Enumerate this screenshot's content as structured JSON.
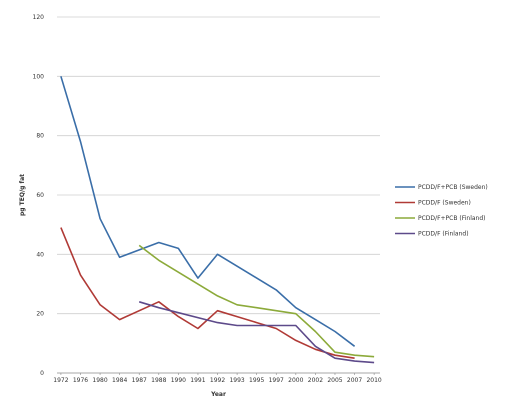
{
  "chart_data": {
    "type": "line",
    "title": "",
    "xlabel": "Year",
    "ylabel": "pg TEQ/g fat",
    "ylim": [
      0,
      120
    ],
    "yticks": [
      0,
      20,
      40,
      60,
      80,
      100,
      120
    ],
    "categories": [
      "1972",
      "1976",
      "1980",
      "1984",
      "1987",
      "1988",
      "1990",
      "1991",
      "1992",
      "1993",
      "1995",
      "1997",
      "2000",
      "2002",
      "2005",
      "2007",
      "2010"
    ],
    "grid": true,
    "legend_position": "right",
    "series": [
      {
        "name": "PCDD/F+PCB (Sweden)",
        "color": "#3a6ea8",
        "values": [
          100,
          78,
          52,
          39,
          null,
          44,
          42,
          32,
          40,
          36,
          32,
          28,
          22,
          18,
          14,
          9,
          null
        ]
      },
      {
        "name": "PCDD/F (Sweden)",
        "color": "#b03a36",
        "values": [
          49,
          33,
          23,
          18,
          null,
          24,
          19,
          15,
          21,
          19,
          17,
          15,
          11,
          8,
          6,
          5,
          null
        ]
      },
      {
        "name": "PCDD/F+PCB (Finland)",
        "color": "#8caa3a",
        "values": [
          null,
          null,
          null,
          null,
          43,
          38,
          null,
          null,
          26,
          23,
          22,
          21,
          20,
          14,
          7,
          6,
          5.5
        ]
      },
      {
        "name": "PCDD/F (Finland)",
        "color": "#5d4a8a",
        "values": [
          null,
          null,
          null,
          null,
          24,
          22,
          null,
          null,
          17,
          16,
          16,
          16,
          16,
          9,
          5,
          4,
          3.5
        ]
      }
    ]
  }
}
